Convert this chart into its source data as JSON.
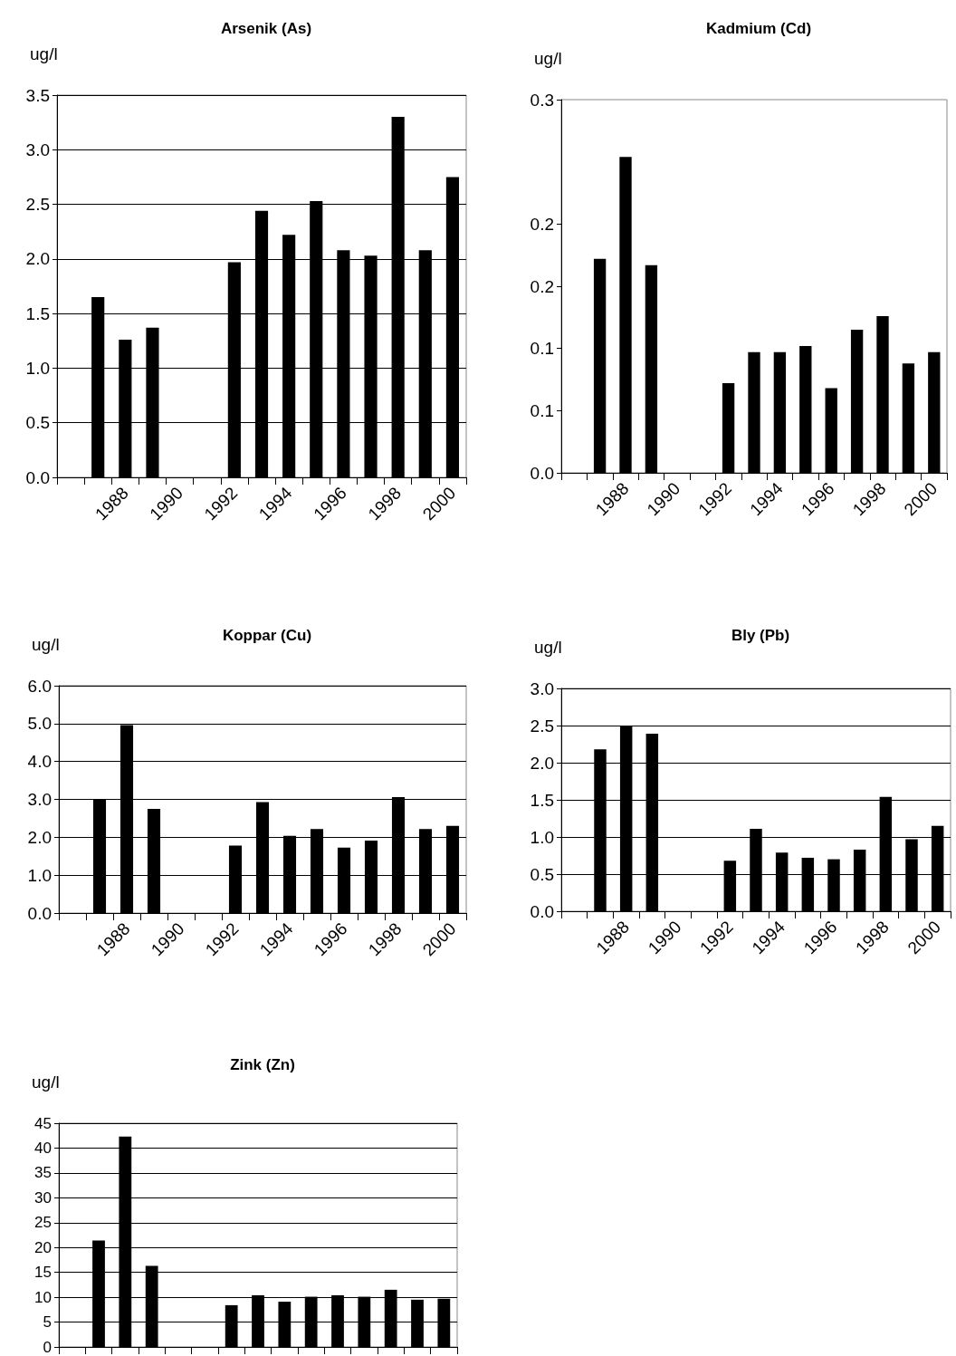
{
  "chart_data": [
    {
      "type": "bar",
      "title": "Arsenik (As)",
      "ylabel": "ug/l",
      "categories": [
        null,
        null,
        "1988",
        null,
        "1990",
        null,
        "1992",
        null,
        "1994",
        null,
        "1996",
        null,
        "1998",
        null,
        "2000"
      ],
      "series": [
        {
          "color": "#000000",
          "values": [
            null,
            1.65,
            1.26,
            1.37,
            null,
            null,
            1.97,
            2.44,
            2.22,
            2.53,
            2.08,
            2.03,
            3.3,
            2.08,
            2.75
          ]
        }
      ],
      "ylim": [
        0,
        3.5
      ],
      "yticks": [
        {
          "value": 0,
          "label": "0.0"
        },
        0.5,
        {
          "value": 1,
          "label": "1.0"
        },
        1.5,
        {
          "value": 2,
          "label": "2.0"
        },
        2.5,
        {
          "value": 3,
          "label": "3.0"
        },
        3.5
      ],
      "grid": "y"
    },
    {
      "type": "bar",
      "title": "Kadmium (Cd)",
      "ylabel": "ug/l",
      "categories": [
        null,
        null,
        "1988",
        null,
        "1990",
        null,
        "1992",
        null,
        "1994",
        null,
        "1996",
        null,
        "1998",
        null,
        "2000"
      ],
      "series": [
        {
          "color": "#000000",
          "values": [
            null,
            0.172,
            0.254,
            0.167,
            null,
            null,
            0.072,
            0.097,
            0.097,
            0.102,
            0.068,
            0.115,
            0.126,
            0.088,
            0.097
          ]
        }
      ],
      "ylim": [
        0,
        0.3
      ],
      "yticks": [
        {
          "value": 0,
          "label": "0.0"
        },
        {
          "value": 0.05,
          "label": "0.1"
        },
        0.1,
        {
          "value": 0.15,
          "label": "0.2"
        },
        0.2,
        0.3
      ],
      "grid": false
    },
    {
      "type": "bar",
      "title": "Koppar (Cu)",
      "ylabel": "ug/l",
      "categories": [
        null,
        null,
        "1988",
        null,
        "1990",
        null,
        "1992",
        null,
        "1994",
        null,
        "1996",
        null,
        "1998",
        null,
        "2000"
      ],
      "series": [
        {
          "color": "#000000",
          "values": [
            null,
            3.01,
            4.96,
            2.75,
            null,
            null,
            1.78,
            2.93,
            2.04,
            2.22,
            1.73,
            1.91,
            3.06,
            2.22,
            2.3
          ]
        }
      ],
      "ylim": [
        0,
        6
      ],
      "yticks": [
        {
          "value": 0,
          "label": "0.0"
        },
        {
          "value": 1,
          "label": "1.0"
        },
        {
          "value": 2,
          "label": "2.0"
        },
        {
          "value": 3,
          "label": "3.0"
        },
        {
          "value": 4,
          "label": "4.0"
        },
        {
          "value": 5,
          "label": "5.0"
        },
        {
          "value": 6,
          "label": "6.0"
        }
      ],
      "grid": "y"
    },
    {
      "type": "bar",
      "title": "Bly (Pb)",
      "ylabel": "ug/l",
      "categories": [
        null,
        null,
        "1988",
        null,
        "1990",
        null,
        "1992",
        null,
        "1994",
        null,
        "1996",
        null,
        "1998",
        null,
        "2000"
      ],
      "series": [
        {
          "color": "#000000",
          "values": [
            null,
            2.18,
            2.5,
            2.39,
            null,
            null,
            0.68,
            1.11,
            0.79,
            0.72,
            0.7,
            0.83,
            1.54,
            0.97,
            1.15
          ]
        }
      ],
      "ylim": [
        0,
        3
      ],
      "yticks": [
        {
          "value": 0,
          "label": "0.0"
        },
        0.5,
        {
          "value": 1,
          "label": "1.0"
        },
        1.5,
        {
          "value": 2,
          "label": "2.0"
        },
        2.5,
        {
          "value": 3,
          "label": "3.0"
        }
      ],
      "grid": "y"
    },
    {
      "type": "bar",
      "title": "Zink (Zn)",
      "ylabel": "ug/l",
      "categories": [
        null,
        null,
        null,
        null,
        null,
        null,
        null,
        null,
        null,
        null,
        null,
        null,
        null,
        null,
        null
      ],
      "series": [
        {
          "color": "#000000",
          "values": [
            null,
            21.4,
            42.3,
            16.3,
            null,
            null,
            8.4,
            10.4,
            9.1,
            10.1,
            10.4,
            10.1,
            11.5,
            9.5,
            9.7
          ]
        }
      ],
      "ylim": [
        0,
        45
      ],
      "yticks": [
        0,
        5,
        10,
        15,
        20,
        25,
        30,
        35,
        40,
        45
      ],
      "grid": "y",
      "tick_labels": "y"
    }
  ]
}
